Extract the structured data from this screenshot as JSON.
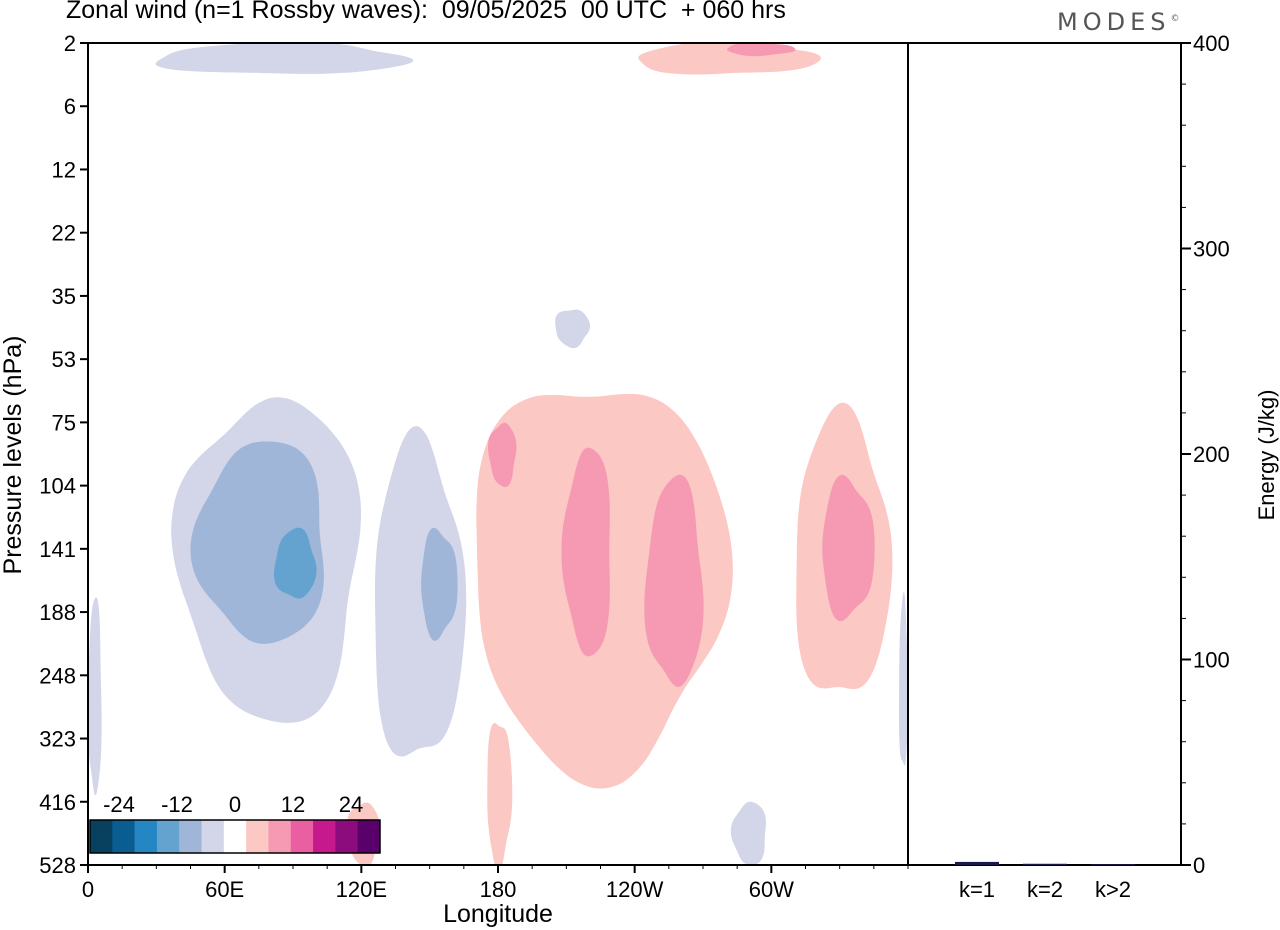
{
  "header": {
    "title": "Zonal wind (n=1 Rossby waves):  09/05/2025  00 UTC  + 060 hrs",
    "logo_text": "MODES",
    "logo_mark": "©"
  },
  "chart_data": [
    {
      "type": "heatmap",
      "subtype": "filled-contour",
      "title": "Zonal wind (n=1 Rossby waves):  09/05/2025  00 UTC  + 060 hrs",
      "xlabel": "Longitude",
      "ylabel": "Pressure levels (hPa)",
      "x_ticks": [
        {
          "lon": 0,
          "label": "0"
        },
        {
          "lon": 60,
          "label": "60E"
        },
        {
          "lon": 120,
          "label": "120E"
        },
        {
          "lon": 180,
          "label": "180"
        },
        {
          "lon": 240,
          "label": "120W"
        },
        {
          "lon": 300,
          "label": "60W"
        }
      ],
      "xlim": [
        0,
        360
      ],
      "y_levels": [
        "2",
        "6",
        "12",
        "22",
        "35",
        "53",
        "75",
        "104",
        "141",
        "188",
        "248",
        "323",
        "416",
        "528"
      ],
      "y_scale": "level index, top = 2 hPa, bottom = 528 hPa",
      "grid": false,
      "colorbar": {
        "location": "bottom-left",
        "tick_labels": [
          "-24",
          "-12",
          "0",
          "12",
          "24"
        ],
        "tick_values": [
          -24,
          -12,
          0,
          12,
          24
        ],
        "bounds": [
          -30,
          -26,
          -22,
          -18,
          -14,
          -10,
          -6,
          -2,
          2,
          6,
          10,
          14,
          18,
          22,
          26,
          30
        ],
        "colors": [
          "#07415f",
          "#0a5d91",
          "#2487c4",
          "#64a3d0",
          "#9fb6d9",
          "#d3d5e8",
          "#ffffff",
          "#fbc8c3",
          "#f69ab4",
          "#ea5fa1",
          "#c7198e",
          "#8c0c7e",
          "#5a006a"
        ]
      },
      "regions": [
        {
          "sign": "negative",
          "level": 1,
          "lon_range": [
            30,
            140
          ],
          "level_range": [
            0,
            0.5
          ],
          "note": "weak easterly anomaly near 2 hPa"
        },
        {
          "sign": "positive",
          "level": 1,
          "lon_range": [
            240,
            320
          ],
          "level_range": [
            0,
            0.5
          ],
          "note": "westerly anomaly near 2 hPa"
        },
        {
          "sign": "positive",
          "level": 2,
          "lon_range": [
            280,
            310
          ],
          "level_range": [
            0,
            0.2
          ],
          "note": "core near 2 hPa"
        },
        {
          "sign": "negative",
          "level": 1,
          "lon_range": [
            205,
            220
          ],
          "level_range": [
            4.2,
            4.8
          ],
          "note": "small patch near 35 hPa"
        },
        {
          "sign": "negative",
          "level": 1,
          "lon_range": [
            40,
            120
          ],
          "level_range": [
            5.6,
            10.7
          ],
          "note": "100-300 hPa easterly anomaly"
        },
        {
          "sign": "negative",
          "level": 2,
          "lon_range": [
            48,
            105
          ],
          "level_range": [
            6.3,
            9.5
          ],
          "note": "core ~ -10"
        },
        {
          "sign": "negative",
          "level": 3,
          "lon_range": [
            82,
            100
          ],
          "level_range": [
            7.7,
            8.8
          ],
          "note": "core ~ -14 near 140 hPa"
        },
        {
          "sign": "negative",
          "level": 1,
          "lon_range": [
            125,
            165
          ],
          "level_range": [
            6.3,
            11.4
          ],
          "note": "easterly anomaly 120E-160E"
        },
        {
          "sign": "negative",
          "level": 2,
          "lon_range": [
            146,
            162
          ],
          "level_range": [
            7.7,
            9.4
          ],
          "note": "core near 150 hPa"
        },
        {
          "sign": "positive",
          "level": 1,
          "lon_range": [
            168,
            280
          ],
          "level_range": [
            5.3,
            11.5
          ],
          "note": "westerly anomaly near dateline to 100W"
        },
        {
          "sign": "positive",
          "level": 2,
          "lon_range": [
            176,
            188
          ],
          "level_range": [
            6.0,
            7.0
          ],
          "note": "core near 90 hPa"
        },
        {
          "sign": "positive",
          "level": 2,
          "lon_range": [
            209,
            230
          ],
          "level_range": [
            6.4,
            9.7
          ],
          "note": "core near 150 hPa"
        },
        {
          "sign": "positive",
          "level": 2,
          "lon_range": [
            245,
            270
          ],
          "level_range": [
            6.9,
            10.2
          ],
          "note": "core near 180 hPa"
        },
        {
          "sign": "positive",
          "level": 1,
          "lon_range": [
            310,
            352
          ],
          "level_range": [
            5.9,
            10.4
          ],
          "note": "westerly anomaly near 40W"
        },
        {
          "sign": "positive",
          "level": 2,
          "lon_range": [
            322,
            345
          ],
          "level_range": [
            6.9,
            9.1
          ],
          "note": "core near 140 hPa"
        },
        {
          "sign": "positive",
          "level": 1,
          "lon_range": [
            175,
            186
          ],
          "level_range": [
            10.7,
            13.0
          ],
          "note": "low-level patch near 180"
        },
        {
          "sign": "positive",
          "level": 1,
          "lon_range": [
            114,
            128
          ],
          "level_range": [
            12.0,
            13.0
          ],
          "note": "patch near 120E surface"
        },
        {
          "sign": "negative",
          "level": 1,
          "lon_range": [
            283,
            298
          ],
          "level_range": [
            12.0,
            13.0
          ],
          "note": "patch near 70W surface"
        },
        {
          "sign": "negative",
          "level": 1,
          "lon_range": [
            0,
            6
          ],
          "level_range": [
            8.8,
            11.9
          ],
          "note": "western edge"
        },
        {
          "sign": "negative",
          "level": 1,
          "lon_range": [
            356,
            360
          ],
          "level_range": [
            8.8,
            11.5
          ],
          "note": "eastern edge"
        }
      ]
    },
    {
      "type": "bar",
      "ylabel": "Energy (J/kg)",
      "ylim": [
        0,
        400
      ],
      "y_ticks": [
        0,
        100,
        200,
        300,
        400
      ],
      "categories": [
        "k=1",
        "k=2",
        "k>2"
      ],
      "values": [
        1.5,
        0.6,
        0.4
      ],
      "bar_color": "#1a1a4a"
    }
  ]
}
